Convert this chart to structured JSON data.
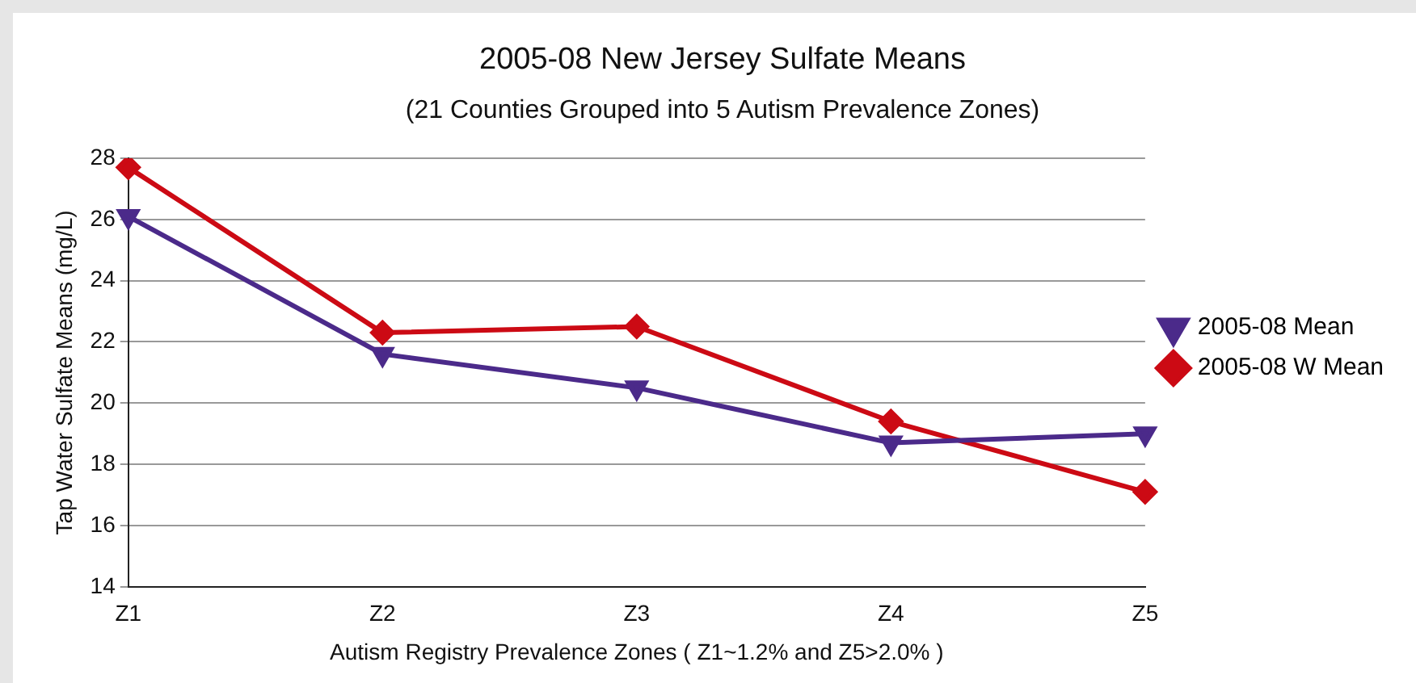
{
  "chart_data": {
    "type": "line",
    "title": "2005-08 New Jersey Sulfate Means",
    "subtitle": "(21 Counties Grouped into 5 Autism Prevalence Zones)",
    "xlabel": "Autism Registry Prevalence Zones ( Z1~1.2% and Z5>2.0% )",
    "ylabel": "Tap Water Sulfate Means (mg/L)",
    "categories": [
      "Z1",
      "Z2",
      "Z3",
      "Z4",
      "Z5"
    ],
    "series": [
      {
        "name": "2005-08 Mean",
        "color": "#4b2a8a",
        "values": [
          26.1,
          21.6,
          20.5,
          18.7,
          19.0
        ],
        "marker": "triangle"
      },
      {
        "name": "2005-08 W Mean",
        "color": "#cc0a14",
        "values": [
          27.7,
          22.3,
          22.5,
          19.4,
          17.1
        ],
        "marker": "diamond"
      }
    ],
    "ylim": [
      14,
      28
    ],
    "yticks": [
      14,
      16,
      18,
      20,
      22,
      24,
      26,
      28
    ],
    "grid": "y",
    "legend": "right"
  }
}
